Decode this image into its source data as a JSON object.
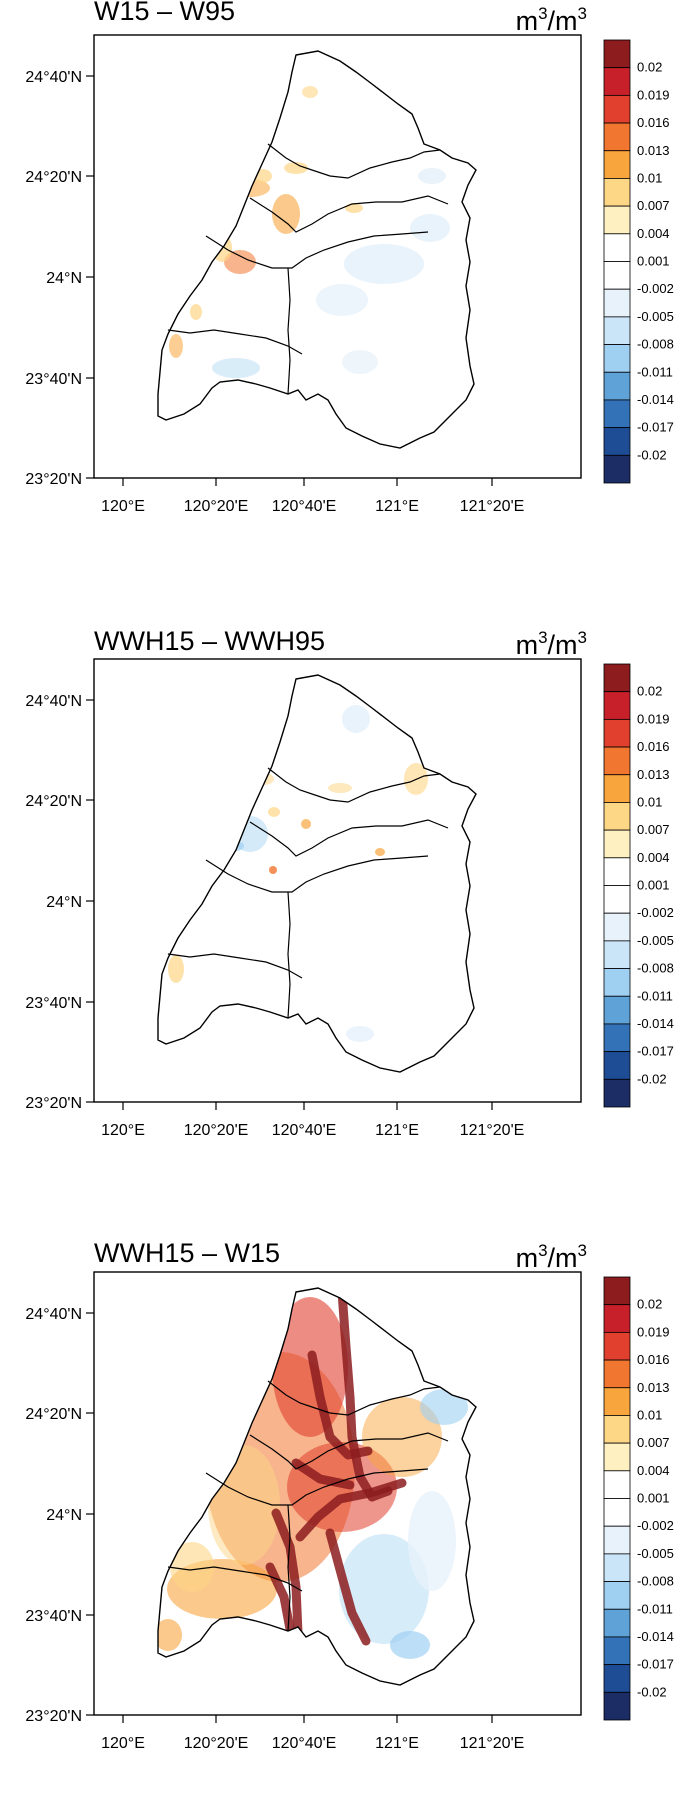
{
  "units": {
    "base": "m",
    "sup1": "3",
    "mid": "/m",
    "sup2": "3"
  },
  "lat_labels": [
    "24°40'N",
    "24°20'N",
    "24°N",
    "23°40'N",
    "23°20'N"
  ],
  "lon_labels": [
    "120°E",
    "120°20'E",
    "120°40'E",
    "121°E",
    "121°20'E"
  ],
  "colorbar": {
    "labels": [
      "0.02",
      "0.019",
      "0.016",
      "0.013",
      "0.01",
      "0.007",
      "0.004",
      "0.001",
      "-0.002",
      "-0.005",
      "-0.008",
      "-0.011",
      "-0.014",
      "-0.017",
      "-0.02"
    ],
    "colors": [
      "#8c1c1e",
      "#c8202a",
      "#e1402e",
      "#f1762f",
      "#f9a53d",
      "#fdd686",
      "#fef0c0",
      "#ffffff",
      "#ffffff",
      "#e7f2fb",
      "#c9e5f7",
      "#9fd0f2",
      "#5ea2d8",
      "#3472b7",
      "#1e4d96",
      "#1c2c64"
    ]
  },
  "panels": [
    {
      "title": "W15 – W95"
    },
    {
      "title": "WWH15 – WWH95"
    },
    {
      "title": "WWH15 – W15"
    }
  ]
}
